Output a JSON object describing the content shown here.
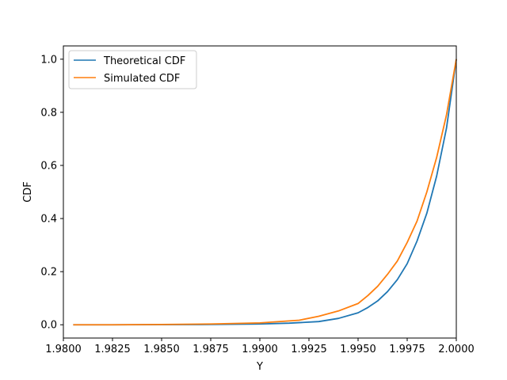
{
  "chart_data": {
    "type": "line",
    "xlabel": "Y",
    "ylabel": "CDF",
    "xlim": [
      1.98,
      2.0
    ],
    "ylim": [
      -0.05,
      1.05
    ],
    "xticks": [
      1.98,
      1.9825,
      1.985,
      1.9875,
      1.99,
      1.9925,
      1.995,
      1.9975,
      2.0
    ],
    "xtick_labels": [
      "1.9800",
      "1.9825",
      "1.9850",
      "1.9875",
      "1.9900",
      "1.9925",
      "1.9950",
      "1.9975",
      "2.0000"
    ],
    "yticks": [
      0.0,
      0.2,
      0.4,
      0.6,
      0.8,
      1.0
    ],
    "ytick_labels": [
      "0.0",
      "0.2",
      "0.4",
      "0.6",
      "0.8",
      "1.0"
    ],
    "legend_position": "top-left",
    "grid": false,
    "series": [
      {
        "name": "Theoretical CDF",
        "color": "#1f77b4",
        "x": [
          1.9805,
          1.9825,
          1.985,
          1.9875,
          1.99,
          1.9915,
          1.993,
          1.994,
          1.995,
          1.9955,
          1.996,
          1.9965,
          1.997,
          1.9975,
          1.998,
          1.9985,
          1.999,
          1.9995,
          2.0
        ],
        "y": [
          0.0,
          0.0,
          0.0005,
          0.001,
          0.003,
          0.006,
          0.012,
          0.024,
          0.045,
          0.065,
          0.09,
          0.125,
          0.17,
          0.23,
          0.315,
          0.42,
          0.56,
          0.74,
          1.0
        ]
      },
      {
        "name": "Simulated CDF",
        "color": "#ff7f0e",
        "x": [
          1.9805,
          1.9825,
          1.985,
          1.9875,
          1.99,
          1.992,
          1.993,
          1.994,
          1.995,
          1.9955,
          1.996,
          1.9965,
          1.997,
          1.9975,
          1.998,
          1.9985,
          1.999,
          1.9995,
          2.0
        ],
        "y": [
          0.0,
          0.0,
          0.001,
          0.003,
          0.007,
          0.017,
          0.032,
          0.052,
          0.08,
          0.11,
          0.145,
          0.19,
          0.24,
          0.31,
          0.39,
          0.5,
          0.63,
          0.79,
          1.0
        ]
      }
    ]
  }
}
